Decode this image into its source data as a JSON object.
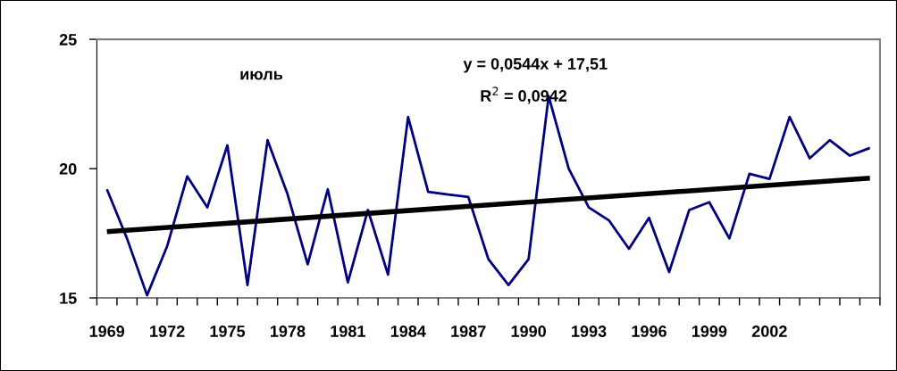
{
  "chart_data": {
    "type": "line",
    "x": [
      1969,
      1970,
      1971,
      1972,
      1973,
      1974,
      1975,
      1976,
      1977,
      1978,
      1979,
      1980,
      1981,
      1982,
      1983,
      1984,
      1985,
      1986,
      1987,
      1988,
      1989,
      1990,
      1991,
      1992,
      1993,
      1994,
      1995,
      1996,
      1997,
      1998,
      1999,
      2000,
      2001,
      2002,
      2003,
      2004,
      2005,
      2006,
      2007
    ],
    "series": [
      {
        "color": "#000080",
        "values": [
          19.2,
          17.3,
          15.1,
          17.0,
          19.7,
          18.5,
          20.9,
          15.5,
          21.1,
          19.0,
          16.3,
          19.2,
          15.6,
          18.4,
          15.9,
          22.0,
          19.1,
          19.0,
          18.9,
          16.5,
          15.5,
          16.5,
          22.8,
          20.0,
          18.5,
          18.0,
          16.9,
          18.1,
          16.0,
          18.4,
          18.7,
          17.3,
          19.8,
          19.6,
          22.0,
          20.4,
          21.1,
          20.5,
          20.8
        ]
      },
      {
        "type": "line",
        "color": "#000000",
        "x": [
          1969,
          2007
        ],
        "values": [
          17.56,
          19.63
        ]
      }
    ],
    "xlim": [
      1968.5,
      2007.5
    ],
    "xticks": [
      1969,
      1972,
      1975,
      1978,
      1981,
      1984,
      1987,
      1990,
      1993,
      1996,
      1999,
      2002
    ],
    "ylim": [
      15,
      25
    ],
    "yticks": [
      15,
      20,
      25
    ],
    "grid": false,
    "marker": "none",
    "line_style": "solid",
    "annotations": [
      "июль",
      "y = 0,0544x + 17,51",
      "R$^{2}$ = 0,0942"
    ]
  }
}
